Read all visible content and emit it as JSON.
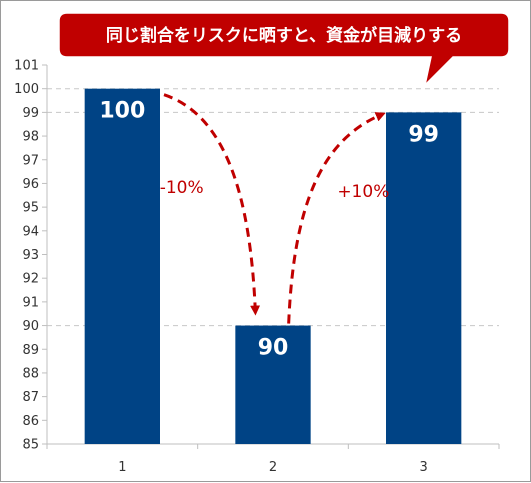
{
  "chart_data": {
    "type": "bar",
    "categories": [
      "1",
      "2",
      "3"
    ],
    "values": [
      100,
      90,
      99
    ],
    "data_labels": [
      "100",
      "90",
      "99"
    ],
    "title": "",
    "xlabel": "",
    "ylabel": "",
    "ylim": [
      85,
      101
    ],
    "yticks": [
      85,
      86,
      87,
      88,
      89,
      90,
      91,
      92,
      93,
      94,
      95,
      96,
      97,
      98,
      99,
      100,
      101
    ],
    "dashed_gridlines_at": [
      90,
      99,
      100
    ],
    "bar_color": "#004385",
    "legend": "none",
    "annotations": [
      {
        "text": "-10%",
        "from_category": "1",
        "to_category": "2"
      },
      {
        "text": "+10%",
        "from_category": "2",
        "to_category": "3"
      }
    ]
  },
  "callout": {
    "text": "同じ割合をリスクに晒すと、資金が目減りする",
    "color": "#c00000"
  },
  "colors": {
    "bar": "#004385",
    "arrow": "#c00000",
    "axis": "#bfbfbf",
    "gridline": "#c8c8c8"
  }
}
